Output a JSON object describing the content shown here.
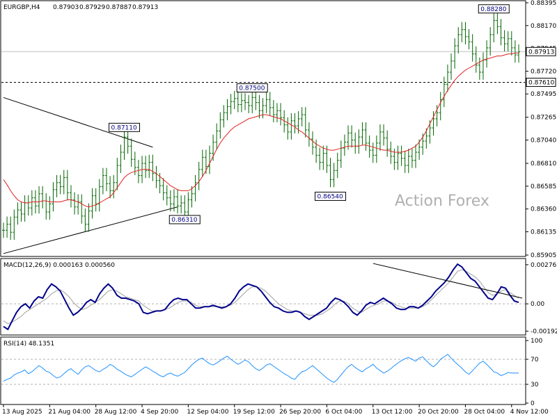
{
  "chart_data": {
    "type": "line",
    "header": {
      "symbol": "EURGBP,H4",
      "open": "0.87903",
      "high": "0.87929",
      "low": "0.87887",
      "close": "0.87913"
    },
    "watermark": "Action Forex",
    "price_axis": {
      "ticks": [
        "0.88395",
        "0.88170",
        "0.87945",
        "0.87720",
        "0.87495",
        "0.87265",
        "0.87040",
        "0.86810",
        "0.86585",
        "0.86360",
        "0.86135",
        "0.85905"
      ],
      "ylim": [
        0.85905,
        0.88395
      ]
    },
    "current_price": {
      "label": "0.87913",
      "value": 0.87913
    },
    "dashed_level": {
      "label": "0.87610",
      "value": 0.8761
    },
    "annotations": [
      {
        "label": "0.87110",
        "x_index": 34,
        "value": 0.8711
      },
      {
        "label": "0.86310",
        "x_index": 51,
        "value": 0.8631
      },
      {
        "label": "0.87500",
        "x_index": 70,
        "value": 0.875
      },
      {
        "label": "0.86540",
        "x_index": 92,
        "value": 0.8654
      },
      {
        "label": "0.88280",
        "x_index": 138,
        "value": 0.8828
      }
    ],
    "x_axis": {
      "labels": [
        "13 Aug 2025",
        "21 Aug 04:00",
        "28 Aug 12:00",
        "4 Sep 20:00",
        "12 Sep 04:00",
        "19 Sep 12:00",
        "26 Sep 20:00",
        "6 Oct 04:00",
        "13 Oct 12:00",
        "20 Oct 20:00",
        "28 Oct 04:00",
        "4 Nov 12:00"
      ],
      "label_index": [
        0,
        13,
        26,
        39,
        52,
        65,
        78,
        91,
        104,
        117,
        130,
        143
      ]
    },
    "price_series": [
      0.8615,
      0.8621,
      0.8613,
      0.8628,
      0.8635,
      0.8631,
      0.8642,
      0.8637,
      0.8647,
      0.8639,
      0.8651,
      0.8644,
      0.8633,
      0.8641,
      0.8655,
      0.8662,
      0.8658,
      0.8667,
      0.8652,
      0.8645,
      0.8638,
      0.8643,
      0.8629,
      0.8621,
      0.8634,
      0.8649,
      0.8641,
      0.8658,
      0.8669,
      0.8661,
      0.8654,
      0.8662,
      0.8679,
      0.8692,
      0.8707,
      0.8698,
      0.8685,
      0.8677,
      0.8669,
      0.8681,
      0.8674,
      0.8682,
      0.8671,
      0.8664,
      0.8659,
      0.8652,
      0.8647,
      0.8641,
      0.8648,
      0.8639,
      0.8642,
      0.8633,
      0.8645,
      0.8651,
      0.8662,
      0.8675,
      0.8687,
      0.8678,
      0.8691,
      0.8702,
      0.8713,
      0.8724,
      0.8731,
      0.8737,
      0.8742,
      0.8745,
      0.8739,
      0.8743,
      0.8741,
      0.8738,
      0.8746,
      0.8741,
      0.8733,
      0.8738,
      0.8744,
      0.8736,
      0.8729,
      0.8733,
      0.8726,
      0.8719,
      0.8712,
      0.8723,
      0.8718,
      0.8725,
      0.8729,
      0.8714,
      0.8705,
      0.8697,
      0.8689,
      0.8682,
      0.8691,
      0.8679,
      0.8665,
      0.8674,
      0.8684,
      0.8696,
      0.8702,
      0.8711,
      0.8704,
      0.8698,
      0.8707,
      0.8714,
      0.8701,
      0.8694,
      0.8689,
      0.8701,
      0.8712,
      0.8706,
      0.8695,
      0.8688,
      0.8682,
      0.8691,
      0.8686,
      0.8679,
      0.8688,
      0.8684,
      0.8692,
      0.8697,
      0.8703,
      0.8708,
      0.8716,
      0.8725,
      0.8731,
      0.8744,
      0.8759,
      0.8771,
      0.8782,
      0.8797,
      0.8808,
      0.8813,
      0.8806,
      0.8801,
      0.8789,
      0.8778,
      0.8771,
      0.8783,
      0.8795,
      0.8808,
      0.8822,
      0.8816,
      0.8805,
      0.8799,
      0.8804,
      0.8795,
      0.8788,
      0.8791
    ],
    "ma_series": [
      0.8665,
      0.866,
      0.8654,
      0.8649,
      0.8645,
      0.8643,
      0.8642,
      0.8642,
      0.8643,
      0.8643,
      0.8643,
      0.8644,
      0.8644,
      0.8643,
      0.8643,
      0.8643,
      0.8643,
      0.8644,
      0.8645,
      0.8645,
      0.8644,
      0.8643,
      0.8641,
      0.8639,
      0.8638,
      0.8639,
      0.864,
      0.8642,
      0.8644,
      0.8646,
      0.8648,
      0.8652,
      0.8657,
      0.8662,
      0.8667,
      0.867,
      0.8672,
      0.8673,
      0.8674,
      0.8675,
      0.8675,
      0.8675,
      0.8673,
      0.8671,
      0.8668,
      0.8665,
      0.8662,
      0.8659,
      0.8657,
      0.8655,
      0.8654,
      0.8654,
      0.8654,
      0.8656,
      0.8659,
      0.8663,
      0.8668,
      0.8674,
      0.8681,
      0.8688,
      0.8695,
      0.8701,
      0.8706,
      0.871,
      0.8714,
      0.8717,
      0.8719,
      0.8721,
      0.8723,
      0.8725,
      0.8726,
      0.8727,
      0.8728,
      0.8729,
      0.8729,
      0.8728,
      0.8727,
      0.8726,
      0.8725,
      0.8723,
      0.8721,
      0.8719,
      0.8717,
      0.8714,
      0.8712,
      0.8709,
      0.8706,
      0.8703,
      0.87,
      0.8698,
      0.8696,
      0.8695,
      0.8694,
      0.8694,
      0.8695,
      0.8696,
      0.8697,
      0.8698,
      0.8698,
      0.8698,
      0.8698,
      0.8699,
      0.8699,
      0.8698,
      0.8697,
      0.8696,
      0.8695,
      0.8694,
      0.8694,
      0.8693,
      0.8692,
      0.8692,
      0.8692,
      0.8693,
      0.8694,
      0.8696,
      0.8698,
      0.8702,
      0.8707,
      0.8713,
      0.872,
      0.8727,
      0.8734,
      0.8741,
      0.8747,
      0.8753,
      0.8758,
      0.8763,
      0.8767,
      0.877,
      0.8773,
      0.8775,
      0.8777,
      0.8779,
      0.8781,
      0.8783,
      0.8784,
      0.8785,
      0.8786,
      0.8787,
      0.8787,
      0.8788,
      0.8789,
      0.8789,
      0.879,
      0.879
    ],
    "trend_lines": [
      {
        "name": "falling",
        "points": [
          [
            0,
            0.8746
          ],
          [
            42,
            0.8697
          ]
        ]
      },
      {
        "name": "rising",
        "points": [
          [
            0,
            0.8592
          ],
          [
            49,
            0.8638
          ]
        ]
      }
    ],
    "macd": {
      "header": "MACD(12,26,9) 0.000163 0.000560",
      "ticks": [
        "0.00276",
        "0.00",
        "-0.001925"
      ],
      "ylim": [
        -0.0021,
        0.003
      ],
      "trend_line": [
        [
          104,
          0.00285
        ],
        [
          146,
          0.0004
        ]
      ],
      "macd_series": [
        -0.0016,
        -0.0018,
        -0.0012,
        -0.0006,
        -0.0002,
        0.0,
        -0.0003,
        0.0002,
        0.0005,
        0.0004,
        0.001,
        0.0014,
        0.0012,
        0.0009,
        0.0003,
        -0.0003,
        -0.0008,
        -0.0006,
        -0.0003,
        0.0001,
        0.0003,
        0.0001,
        0.0007,
        0.0011,
        0.0014,
        0.0011,
        0.0006,
        0.0004,
        0.0004,
        0.0003,
        0.0002,
        0.0,
        -0.0006,
        -0.0007,
        -0.0006,
        -0.0005,
        -0.0005,
        -0.0004,
        0.0,
        0.0003,
        0.0004,
        0.0003,
        0.0003,
        0.0,
        -0.0003,
        -0.0003,
        -0.0002,
        -0.0002,
        -0.0001,
        -0.0002,
        -0.0003,
        -0.0002,
        0.0,
        0.0004,
        0.0009,
        0.0012,
        0.0014,
        0.0013,
        0.0012,
        0.0009,
        0.0005,
        0.0001,
        -0.0002,
        -0.0003,
        -0.0005,
        -0.0006,
        -0.0006,
        -0.0005,
        -0.0006,
        -0.0009,
        -0.0011,
        -0.0009,
        -0.0007,
        -0.0005,
        -0.0003,
        0.0001,
        0.0004,
        0.0003,
        0.0001,
        -0.0002,
        -0.0006,
        -0.0008,
        -0.0005,
        -0.0001,
        0.0001,
        0.0,
        0.0002,
        0.0004,
        0.0002,
        0.0,
        -0.0003,
        -0.0004,
        -0.0004,
        -0.0002,
        -0.0002,
        -0.0003,
        -0.0001,
        0.0002,
        0.0005,
        0.0009,
        0.0012,
        0.0015,
        0.0019,
        0.0024,
        0.0028,
        0.0026,
        0.0022,
        0.0018,
        0.0016,
        0.0012,
        0.0008,
        0.0004,
        0.0003,
        0.0007,
        0.0012,
        0.0011,
        0.0006,
        0.0002,
        0.0001
      ],
      "signal_series": [
        -0.0012,
        -0.0014,
        -0.0013,
        -0.0011,
        -0.0009,
        -0.0006,
        -0.0004,
        -0.0002,
        0.0,
        0.0002,
        0.0004,
        0.0007,
        0.0009,
        0.001,
        0.0008,
        0.0005,
        0.0001,
        -0.0002,
        -0.0004,
        -0.0003,
        -0.0001,
        0.0001,
        0.0003,
        0.0006,
        0.0009,
        0.001,
        0.0009,
        0.0007,
        0.0005,
        0.0004,
        0.0003,
        0.0002,
        -0.0001,
        -0.0003,
        -0.0005,
        -0.0005,
        -0.0005,
        -0.0004,
        -0.0003,
        -0.0001,
        0.0001,
        0.0002,
        0.0002,
        0.0001,
        -0.0001,
        -0.0002,
        -0.0002,
        -0.0002,
        -0.0002,
        -0.0002,
        -0.0002,
        -0.0002,
        -0.0001,
        0.0001,
        0.0004,
        0.0007,
        0.001,
        0.0012,
        0.0012,
        0.0011,
        0.0009,
        0.0006,
        0.0003,
        0.0,
        -0.0002,
        -0.0004,
        -0.0005,
        -0.0005,
        -0.0006,
        -0.0007,
        -0.0008,
        -0.0008,
        -0.0008,
        -0.0007,
        -0.0005,
        -0.0003,
        0.0,
        0.0002,
        0.0002,
        0.0,
        -0.0003,
        -0.0005,
        -0.0006,
        -0.0004,
        -0.0002,
        -0.0001,
        0.0,
        0.0002,
        0.0002,
        0.0001,
        -0.0001,
        -0.0002,
        -0.0003,
        -0.0003,
        -0.0003,
        -0.0003,
        -0.0002,
        0.0,
        0.0003,
        0.0006,
        0.0009,
        0.0012,
        0.0015,
        0.0019,
        0.0023,
        0.0024,
        0.0023,
        0.0021,
        0.0019,
        0.0016,
        0.0012,
        0.0008,
        0.0006,
        0.0007,
        0.0009,
        0.001,
        0.0008,
        0.0006,
        0.0004
      ]
    },
    "rsi": {
      "header": "RSI(14) 48.1351",
      "ticks": [
        "100",
        "70",
        "30",
        "0"
      ],
      "levels": [
        70,
        30
      ],
      "ylim": [
        0,
        100
      ],
      "series": [
        35,
        38,
        40,
        45,
        48,
        50,
        53,
        47,
        50,
        55,
        60,
        56,
        51,
        49,
        44,
        40,
        42,
        47,
        52,
        55,
        50,
        46,
        53,
        58,
        60,
        56,
        52,
        50,
        54,
        57,
        62,
        59,
        54,
        51,
        47,
        44,
        42,
        46,
        50,
        54,
        58,
        55,
        51,
        48,
        44,
        42,
        46,
        48,
        45,
        43,
        46,
        49,
        55,
        61,
        66,
        70,
        72,
        67,
        63,
        61,
        64,
        68,
        72,
        75,
        70,
        66,
        62,
        65,
        69,
        66,
        60,
        55,
        52,
        56,
        61,
        63,
        59,
        55,
        51,
        47,
        44,
        40,
        38,
        45,
        50,
        52,
        56,
        60,
        55,
        50,
        45,
        40,
        36,
        33,
        38,
        45,
        52,
        58,
        62,
        57,
        53,
        50,
        55,
        58,
        62,
        56,
        52,
        48,
        51,
        55,
        60,
        64,
        68,
        71,
        73,
        70,
        67,
        72,
        74,
        68,
        62,
        58,
        63,
        70,
        74,
        78,
        72,
        66,
        61,
        56,
        50,
        46,
        52,
        58,
        64,
        67,
        62,
        56,
        50,
        48,
        44,
        46,
        49,
        48,
        48,
        48
      ]
    }
  }
}
